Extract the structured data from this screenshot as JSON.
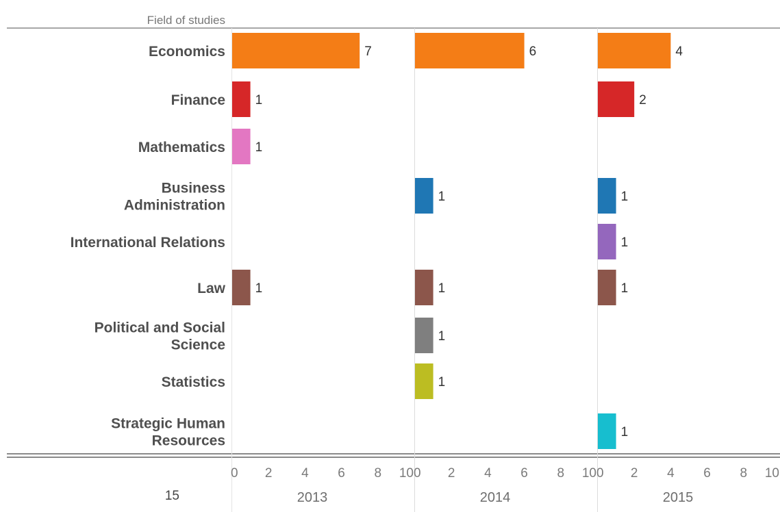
{
  "header_label": "Field of studies",
  "page_number": "15",
  "chart_data": {
    "type": "bar",
    "orientation": "horizontal",
    "title": "",
    "xlabel": "",
    "ylabel": "Field of studies",
    "xlim": [
      0,
      10
    ],
    "x_ticks": [
      0,
      2,
      4,
      6,
      8,
      10
    ],
    "panels": [
      "2013",
      "2014",
      "2015"
    ],
    "categories": [
      "Economics",
      "Finance",
      "Mathematics",
      "Business Administration",
      "International Relations",
      "Law",
      "Political and Social Science",
      "Statistics",
      "Strategic Human Resources"
    ],
    "category_label_lines": [
      [
        "Economics"
      ],
      [
        "Finance"
      ],
      [
        "Mathematics"
      ],
      [
        "Business",
        "Administration"
      ],
      [
        "International Relations"
      ],
      [
        "Law"
      ],
      [
        "Political and Social",
        "Science"
      ],
      [
        "Statistics"
      ],
      [
        "Strategic Human",
        "Resources"
      ]
    ],
    "category_colors": [
      "#f47d16",
      "#d62728",
      "#e377c2",
      "#1f77b4",
      "#9467bd",
      "#8c564b",
      "#7f7f7f",
      "#bcbd22",
      "#17becf"
    ],
    "series": [
      {
        "name": "2013",
        "values": [
          7,
          1,
          1,
          null,
          null,
          1,
          null,
          null,
          null
        ]
      },
      {
        "name": "2014",
        "values": [
          6,
          null,
          null,
          1,
          null,
          1,
          1,
          1,
          null
        ]
      },
      {
        "name": "2015",
        "values": [
          4,
          2,
          null,
          1,
          1,
          1,
          null,
          null,
          1
        ]
      }
    ],
    "grid": false,
    "legend": "none"
  }
}
